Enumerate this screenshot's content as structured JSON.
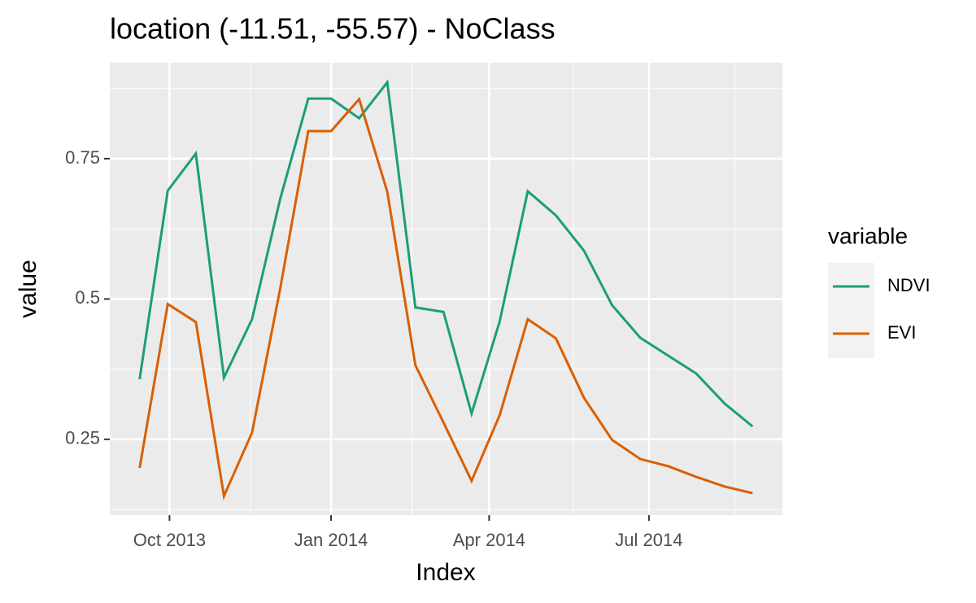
{
  "chart_data": {
    "type": "line",
    "title": "location (-11.51, -55.57) - NoClass",
    "x_label": "Index",
    "y_label": "value",
    "legend_title": "variable",
    "x": [
      "2013-09-14",
      "2013-09-30",
      "2013-10-16",
      "2013-11-01",
      "2013-11-17",
      "2013-12-03",
      "2013-12-19",
      "2014-01-01",
      "2014-01-17",
      "2014-02-02",
      "2014-02-18",
      "2014-03-06",
      "2014-03-22",
      "2014-04-07",
      "2014-04-23",
      "2014-05-09",
      "2014-05-25",
      "2014-06-10",
      "2014-06-26",
      "2014-07-12",
      "2014-07-28",
      "2014-08-13",
      "2014-08-29"
    ],
    "series": [
      {
        "name": "NDVI",
        "color": "#1b9e77",
        "values": [
          0.357,
          0.693,
          0.759,
          0.36,
          0.464,
          0.678,
          0.857,
          0.857,
          0.822,
          0.886,
          0.485,
          0.477,
          0.296,
          0.46,
          0.692,
          0.649,
          0.586,
          0.489,
          0.431,
          0.399,
          0.367,
          0.314,
          0.273
        ]
      },
      {
        "name": "EVI",
        "color": "#d95f02",
        "values": [
          0.199,
          0.491,
          0.459,
          0.149,
          0.262,
          0.518,
          0.799,
          0.799,
          0.856,
          0.691,
          0.382,
          0.28,
          0.176,
          0.293,
          0.464,
          0.43,
          0.324,
          0.249,
          0.215,
          0.202,
          0.183,
          0.166,
          0.154
        ]
      }
    ],
    "xlim": [
      "2013-08-28",
      "2014-09-15"
    ],
    "xticks": [
      {
        "value": "2013-10-01",
        "label": "Oct 2013"
      },
      {
        "value": "2014-01-01",
        "label": "Jan 2014"
      },
      {
        "value": "2014-04-01",
        "label": "Apr 2014"
      },
      {
        "value": "2014-07-01",
        "label": "Jul 2014"
      }
    ],
    "ylim": [
      0.115,
      0.921
    ],
    "yticks": [
      0.25,
      0.5,
      0.75
    ],
    "grid": true,
    "legend": "right"
  }
}
